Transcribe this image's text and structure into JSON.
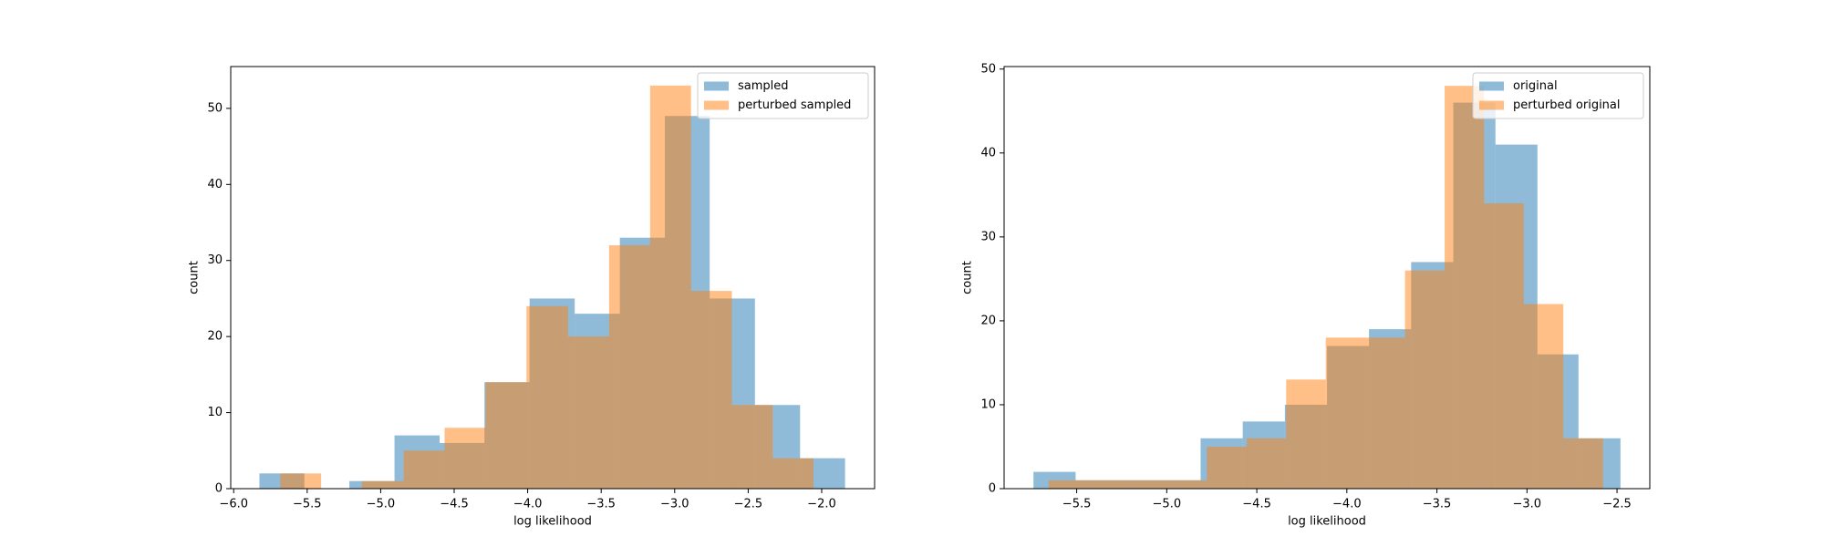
{
  "chart_data": [
    {
      "type": "histogram",
      "xlabel": "log likelihood",
      "ylabel": "count",
      "legend": "upper right",
      "alpha": 0.5,
      "xlim": [
        -6.02,
        -1.64
      ],
      "ylim": [
        0,
        55.5
      ],
      "xticks": [
        {
          "value": -6.0,
          "label": "−6.0"
        },
        {
          "value": -5.5,
          "label": "−5.5"
        },
        {
          "value": -5.0,
          "label": "−5.0"
        },
        {
          "value": -4.5,
          "label": "−4.5"
        },
        {
          "value": -4.0,
          "label": "−4.0"
        },
        {
          "value": -3.5,
          "label": "−3.5"
        },
        {
          "value": -3.0,
          "label": "−3.0"
        },
        {
          "value": -2.5,
          "label": "−2.5"
        },
        {
          "value": -2.0,
          "label": "−2.0"
        }
      ],
      "yticks": [
        0,
        10,
        20,
        30,
        40,
        50
      ],
      "series": [
        {
          "name": "sampled",
          "color": "#1f77b4",
          "bins": [
            -5.825,
            -5.519,
            -5.213,
            -4.906,
            -4.599,
            -4.294,
            -3.987,
            -3.68,
            -3.373,
            -3.067,
            -2.762,
            -2.454,
            -2.147,
            -1.841
          ],
          "values": [
            2,
            0,
            1,
            7,
            6,
            14,
            25,
            23,
            33,
            49,
            25,
            11,
            4
          ]
        },
        {
          "name": "perturbed sampled",
          "color": "#ff7f0e",
          "bins": [
            -5.683,
            -5.405,
            -5.127,
            -4.844,
            -4.565,
            -4.286,
            -4.008,
            -3.725,
            -3.446,
            -3.167,
            -2.889,
            -2.611,
            -2.333,
            -2.056
          ],
          "values": [
            2,
            0,
            1,
            5,
            8,
            14,
            24,
            20,
            32,
            53,
            26,
            11,
            4
          ]
        }
      ]
    },
    {
      "type": "histogram",
      "xlabel": "log likelihood",
      "ylabel": "count",
      "legend": "upper right",
      "alpha": 0.5,
      "xlim": [
        -5.903,
        -2.318
      ],
      "ylim": [
        0,
        50.3
      ],
      "xticks": [
        {
          "value": -5.5,
          "label": "−5.5"
        },
        {
          "value": -5.0,
          "label": "−5.0"
        },
        {
          "value": -4.5,
          "label": "−4.5"
        },
        {
          "value": -4.0,
          "label": "−4.0"
        },
        {
          "value": -3.5,
          "label": "−3.5"
        },
        {
          "value": -3.0,
          "label": "−3.0"
        },
        {
          "value": -2.5,
          "label": "−2.5"
        }
      ],
      "yticks": [
        0,
        10,
        20,
        30,
        40,
        50
      ],
      "series": [
        {
          "name": "original",
          "color": "#1f77b4",
          "bins": [
            -5.74,
            -5.506,
            -5.273,
            -5.039,
            -4.812,
            -4.578,
            -4.344,
            -4.11,
            -3.877,
            -3.643,
            -3.409,
            -3.175,
            -2.942,
            -2.714,
            -2.481
          ],
          "values": [
            2,
            1,
            1,
            1,
            6,
            8,
            10,
            17,
            19,
            27,
            46,
            41,
            16,
            6
          ]
        },
        {
          "name": "perturbed original",
          "color": "#ff7f0e",
          "bins": [
            -5.656,
            -5.436,
            -5.216,
            -4.996,
            -4.777,
            -4.556,
            -4.337,
            -4.117,
            -3.897,
            -3.677,
            -3.457,
            -3.238,
            -3.018,
            -2.798,
            -2.578
          ],
          "values": [
            1,
            1,
            1,
            1,
            5,
            6,
            13,
            18,
            18,
            26,
            48,
            34,
            22,
            6
          ]
        }
      ]
    }
  ]
}
